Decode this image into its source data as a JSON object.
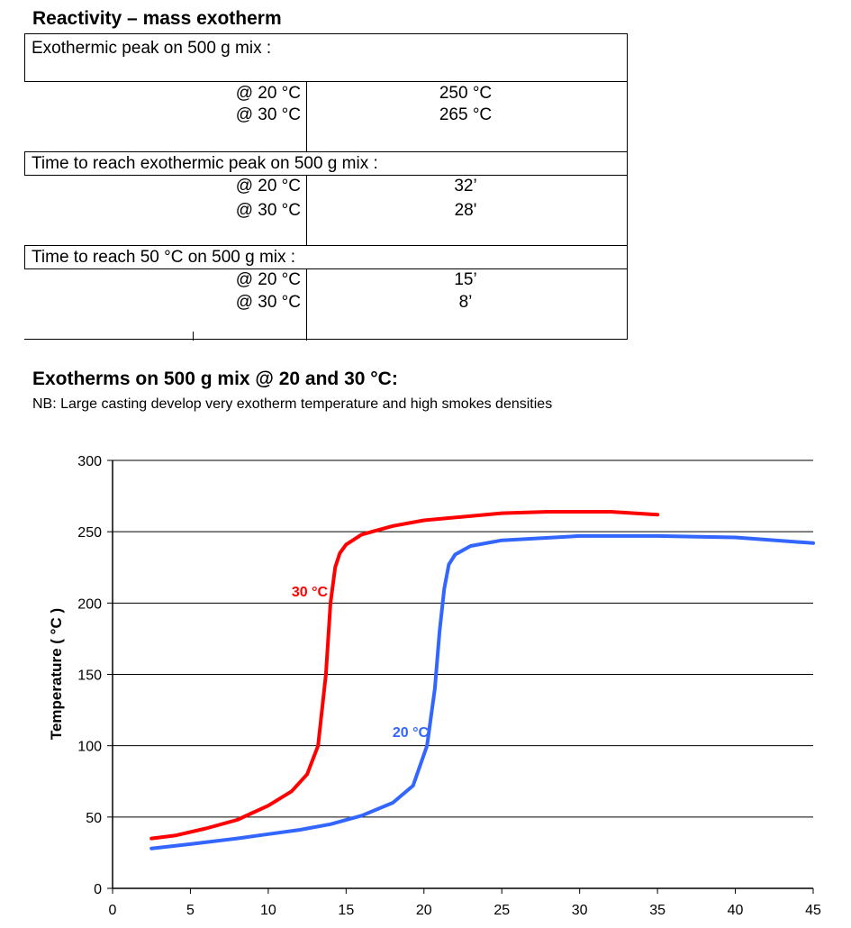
{
  "reactivity": {
    "title": "Reactivity – mass exotherm",
    "sections": [
      {
        "heading": "Exothermic peak on 500 g mix :",
        "rows": [
          {
            "condition": "@ 20 °C",
            "value": "250 °C"
          },
          {
            "condition": "@ 30 °C",
            "value": "265 °C"
          }
        ]
      },
      {
        "heading": "Time to reach exothermic peak on 500 g mix :",
        "rows": [
          {
            "condition": "@ 20 °C",
            "value": "32’"
          },
          {
            "condition": "@ 30 °C",
            "value": "28'"
          }
        ]
      },
      {
        "heading": "Time to reach 50 °C on 500 g mix :",
        "rows": [
          {
            "condition": "@ 20 °C",
            "value": "15’"
          },
          {
            "condition": "@ 30 °C",
            "value": "8’"
          }
        ]
      }
    ]
  },
  "exotherms": {
    "title": "Exotherms on 500 g mix @ 20 and 30 °C:",
    "note": "NB: Large casting develop very exotherm temperature and high smokes densities"
  },
  "chart_data": {
    "type": "line",
    "title": "",
    "xlabel": "",
    "ylabel": "Temperature ( °C )",
    "xlim": [
      0,
      45
    ],
    "ylim": [
      0,
      300
    ],
    "xticks": [
      0,
      5,
      10,
      15,
      20,
      25,
      30,
      35,
      40,
      45
    ],
    "yticks": [
      0,
      50,
      100,
      150,
      200,
      250,
      300
    ],
    "grid": "horizontal",
    "legend": "none",
    "series": [
      {
        "name": "30 °C",
        "color": "#ff0000",
        "x": [
          2.5,
          4,
          6,
          8,
          10,
          11.5,
          12.5,
          13.2,
          13.7,
          14.0,
          14.3,
          14.6,
          15.0,
          16,
          18,
          20,
          25,
          28,
          32,
          35
        ],
        "y": [
          35,
          37,
          42,
          48,
          58,
          68,
          80,
          100,
          150,
          200,
          225,
          235,
          241,
          248,
          254,
          258,
          263,
          264,
          264,
          262
        ]
      },
      {
        "name": "20 °C",
        "color": "#3366ff",
        "x": [
          2.5,
          5,
          8,
          10,
          12,
          14,
          16,
          18,
          19.3,
          20.2,
          20.7,
          21.0,
          21.3,
          21.6,
          22.0,
          23,
          25,
          30,
          35,
          40,
          45
        ],
        "y": [
          28,
          31,
          35,
          38,
          41,
          45,
          51,
          60,
          72,
          100,
          140,
          180,
          210,
          227,
          234,
          240,
          244,
          247,
          247,
          246,
          242
        ]
      }
    ]
  }
}
